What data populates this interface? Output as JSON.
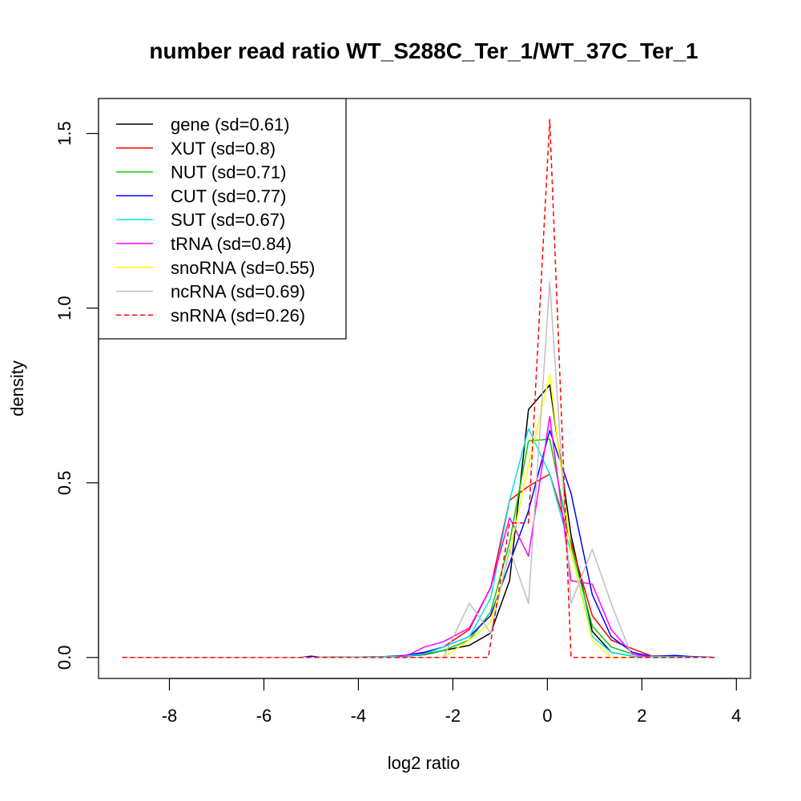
{
  "chart_data": {
    "type": "line",
    "title": "number read ratio WT_S288C_Ter_1/WT_37C_Ter_1",
    "xlabel": "log2 ratio",
    "ylabel": "density",
    "xlim": [
      -9.5,
      4.3
    ],
    "ylim": [
      -0.06,
      1.6
    ],
    "xticks": [
      -8,
      -6,
      -4,
      -2,
      0,
      2,
      4
    ],
    "yticks": [
      0.0,
      0.5,
      1.0,
      1.5
    ],
    "xtick_labels": [
      "-8",
      "-6",
      "-4",
      "-2",
      "0",
      "2",
      "4"
    ],
    "ytick_labels": [
      "0.0",
      "0.5",
      "1.0",
      "1.5"
    ],
    "grid": false,
    "legend_position": "top-left",
    "series": [
      {
        "name": "gene (sd=0.61)",
        "color": "#000000",
        "dash": "solid",
        "points": [
          [
            -9.0,
            0
          ],
          [
            -5.0,
            0
          ],
          [
            -3.5,
            0.002
          ],
          [
            -3.0,
            0.004
          ],
          [
            -2.6,
            0.008
          ],
          [
            -2.2,
            0.02
          ],
          [
            -1.65,
            0.035
          ],
          [
            -1.2,
            0.07
          ],
          [
            -0.8,
            0.22
          ],
          [
            -0.4,
            0.71
          ],
          [
            0.05,
            0.78
          ],
          [
            0.5,
            0.35
          ],
          [
            0.95,
            0.075
          ],
          [
            1.35,
            0.015
          ],
          [
            1.8,
            0.004
          ],
          [
            2.5,
            0.001
          ],
          [
            3.55,
            0
          ]
        ]
      },
      {
        "name": "XUT (sd=0.8)",
        "color": "#ff0000",
        "dash": "solid",
        "points": [
          [
            -9.0,
            0
          ],
          [
            -5.0,
            0
          ],
          [
            -3.5,
            0.002
          ],
          [
            -3.0,
            0.006
          ],
          [
            -2.6,
            0.012
          ],
          [
            -2.2,
            0.03
          ],
          [
            -1.65,
            0.08
          ],
          [
            -1.2,
            0.2
          ],
          [
            -0.8,
            0.45
          ],
          [
            -0.4,
            0.49
          ],
          [
            0.05,
            0.525
          ],
          [
            0.5,
            0.33
          ],
          [
            0.95,
            0.12
          ],
          [
            1.35,
            0.05
          ],
          [
            1.8,
            0.025
          ],
          [
            2.2,
            0.005
          ],
          [
            3.55,
            0
          ]
        ]
      },
      {
        "name": "NUT (sd=0.71)",
        "color": "#00cd00",
        "dash": "solid",
        "points": [
          [
            -9.0,
            0
          ],
          [
            -5.0,
            0
          ],
          [
            -3.5,
            0.002
          ],
          [
            -3.0,
            0.005
          ],
          [
            -2.6,
            0.01
          ],
          [
            -2.2,
            0.02
          ],
          [
            -1.65,
            0.05
          ],
          [
            -1.2,
            0.13
          ],
          [
            -0.8,
            0.33
          ],
          [
            -0.4,
            0.62
          ],
          [
            0.05,
            0.625
          ],
          [
            0.5,
            0.32
          ],
          [
            0.95,
            0.09
          ],
          [
            1.35,
            0.03
          ],
          [
            1.8,
            0.01
          ],
          [
            2.2,
            0.002
          ],
          [
            3.55,
            0
          ]
        ]
      },
      {
        "name": "CUT (sd=0.77)",
        "color": "#0000ff",
        "dash": "solid",
        "points": [
          [
            -9.0,
            0
          ],
          [
            -5.2,
            0
          ],
          [
            -5.0,
            0.004
          ],
          [
            -4.8,
            0
          ],
          [
            -3.5,
            0.002
          ],
          [
            -3.0,
            0.006
          ],
          [
            -2.6,
            0.015
          ],
          [
            -2.2,
            0.03
          ],
          [
            -1.65,
            0.06
          ],
          [
            -1.2,
            0.12
          ],
          [
            -0.8,
            0.27
          ],
          [
            -0.4,
            0.42
          ],
          [
            0.05,
            0.65
          ],
          [
            0.5,
            0.47
          ],
          [
            0.95,
            0.18
          ],
          [
            1.35,
            0.06
          ],
          [
            1.8,
            0.015
          ],
          [
            2.2,
            0.003
          ],
          [
            2.7,
            0.006
          ],
          [
            3.0,
            0.003
          ],
          [
            3.55,
            0
          ]
        ]
      },
      {
        "name": "SUT (sd=0.67)",
        "color": "#00e5ee",
        "dash": "solid",
        "points": [
          [
            -9.0,
            0
          ],
          [
            -5.0,
            0
          ],
          [
            -3.5,
            0.002
          ],
          [
            -3.0,
            0.004
          ],
          [
            -2.6,
            0.01
          ],
          [
            -2.2,
            0.03
          ],
          [
            -1.65,
            0.06
          ],
          [
            -1.2,
            0.17
          ],
          [
            -0.8,
            0.45
          ],
          [
            -0.4,
            0.655
          ],
          [
            0.05,
            0.525
          ],
          [
            0.5,
            0.3
          ],
          [
            0.95,
            0.06
          ],
          [
            1.35,
            0.015
          ],
          [
            1.8,
            0.004
          ],
          [
            3.55,
            0
          ]
        ]
      },
      {
        "name": "tRNA (sd=0.84)",
        "color": "#ff00ff",
        "dash": "solid",
        "points": [
          [
            -9.0,
            0
          ],
          [
            -3.2,
            0
          ],
          [
            -2.9,
            0.01
          ],
          [
            -2.6,
            0.03
          ],
          [
            -2.2,
            0.045
          ],
          [
            -1.65,
            0.085
          ],
          [
            -1.2,
            0.2
          ],
          [
            -0.8,
            0.4
          ],
          [
            -0.4,
            0.29
          ],
          [
            0.05,
            0.69
          ],
          [
            0.5,
            0.22
          ],
          [
            0.95,
            0.21
          ],
          [
            1.35,
            0.08
          ],
          [
            1.8,
            0.01
          ],
          [
            2.2,
            0
          ],
          [
            3.55,
            0
          ]
        ]
      },
      {
        "name": "snoRNA (sd=0.55)",
        "color": "#ffff00",
        "dash": "solid",
        "points": [
          [
            -9.0,
            0
          ],
          [
            -2.2,
            0
          ],
          [
            -1.65,
            0.05
          ],
          [
            -1.2,
            0.1
          ],
          [
            -0.8,
            0.3
          ],
          [
            -0.4,
            0.55
          ],
          [
            0.05,
            0.81
          ],
          [
            0.5,
            0.3
          ],
          [
            0.95,
            0.05
          ],
          [
            1.35,
            0
          ],
          [
            3.55,
            0
          ]
        ]
      },
      {
        "name": "ncRNA (sd=0.69)",
        "color": "#bebebe",
        "dash": "solid",
        "points": [
          [
            -9.0,
            0
          ],
          [
            -2.2,
            0
          ],
          [
            -1.65,
            0.155
          ],
          [
            -1.2,
            0.07
          ],
          [
            -0.8,
            0.31
          ],
          [
            -0.4,
            0.155
          ],
          [
            0.05,
            1.075
          ],
          [
            0.5,
            0.155
          ],
          [
            0.95,
            0.31
          ],
          [
            1.35,
            0.155
          ],
          [
            1.8,
            0
          ],
          [
            3.55,
            0
          ]
        ]
      },
      {
        "name": "snRNA (sd=0.26)",
        "color": "#ff0000",
        "dash": "dashed",
        "points": [
          [
            -9.0,
            0
          ],
          [
            -1.25,
            0
          ],
          [
            -0.8,
            0.385
          ],
          [
            -0.4,
            0.385
          ],
          [
            0.05,
            1.54
          ],
          [
            0.5,
            0
          ],
          [
            3.55,
            0
          ]
        ]
      }
    ]
  }
}
